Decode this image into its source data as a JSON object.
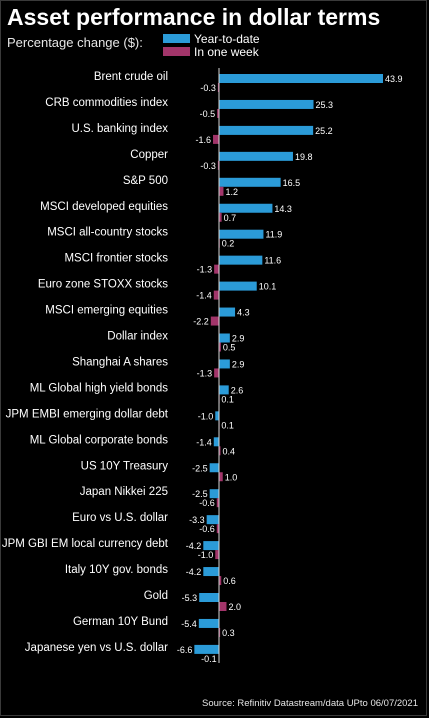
{
  "title": "Asset performance in dollar terms",
  "subtitle": "Percentage change ($):",
  "legend": {
    "ytd": "Year-to-date",
    "week": "In one week",
    "ytd_color": "#2b9bd8",
    "week_color": "#a2356a"
  },
  "source": "Source: Refinitiv Datastream/data UPto 06/07/2021",
  "chart_data": {
    "type": "bar",
    "orientation": "horizontal",
    "title": "Asset performance in dollar terms",
    "subtitle": "Percentage change ($):",
    "grid": false,
    "legend_position": "top",
    "categories": [
      "Brent crude oil",
      "CRB commodities index",
      "U.S. banking index",
      "Copper",
      "S&P 500",
      "MSCI developed equities",
      "MSCI all-country stocks",
      "MSCI frontier stocks",
      "Euro zone STOXX stocks",
      "MSCI emerging equities",
      "Dollar index",
      "Shanghai A shares",
      "ML Global high yield bonds",
      "JPM EMBI emerging dollar debt",
      "ML Global corporate bonds",
      "US 10Y Treasury",
      "Japan Nikkei 225",
      "Euro vs U.S. dollar",
      "JPM GBI EM local currency debt",
      "Italy 10Y gov. bonds",
      "Gold",
      "German 10Y Bund",
      "Japanese yen vs U.S. dollar"
    ],
    "series": [
      {
        "name": "Year-to-date",
        "color": "#2b9bd8",
        "values": [
          43.9,
          25.3,
          25.2,
          19.8,
          16.5,
          14.3,
          11.9,
          11.6,
          10.1,
          4.3,
          2.9,
          2.9,
          2.6,
          -1.0,
          -1.4,
          -2.5,
          -2.5,
          -3.3,
          -4.2,
          -4.2,
          -5.3,
          -5.4,
          -6.6
        ]
      },
      {
        "name": "In one week",
        "color": "#a2356a",
        "values": [
          -0.3,
          -0.5,
          -1.6,
          -0.3,
          1.2,
          0.7,
          0.2,
          -1.3,
          -1.4,
          -2.2,
          0.5,
          -1.3,
          0.1,
          0.1,
          0.4,
          1.0,
          -0.6,
          -0.6,
          -1.0,
          0.6,
          2.0,
          0.3,
          -0.1
        ]
      }
    ],
    "xlim": [
      -6.6,
      43.9
    ]
  }
}
